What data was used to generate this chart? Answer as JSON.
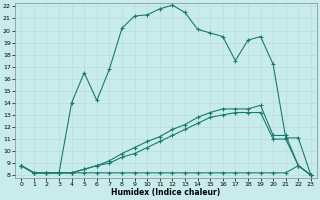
{
  "title": "",
  "xlabel": "Humidex (Indice chaleur)",
  "bg_color": "#c8ecec",
  "grid_color": "#b8d8d8",
  "line_color": "#1a7a6e",
  "xlim": [
    -0.5,
    23.5
  ],
  "ylim": [
    7.8,
    22.3
  ],
  "yticks": [
    8,
    9,
    10,
    11,
    12,
    13,
    14,
    15,
    16,
    17,
    18,
    19,
    20,
    21,
    22
  ],
  "xticks": [
    0,
    1,
    2,
    3,
    4,
    5,
    6,
    7,
    8,
    9,
    10,
    11,
    12,
    13,
    14,
    15,
    16,
    17,
    18,
    19,
    20,
    21,
    22,
    23
  ],
  "line1_x": [
    0,
    1,
    2,
    3,
    4,
    5,
    6,
    7,
    8,
    9,
    10,
    11,
    12,
    13,
    14,
    15,
    16,
    17,
    18,
    19,
    20,
    21,
    22,
    23
  ],
  "line1_y": [
    8.8,
    8.2,
    8.2,
    8.2,
    8.2,
    8.2,
    8.2,
    8.2,
    8.2,
    8.2,
    8.2,
    8.2,
    8.2,
    8.2,
    8.2,
    8.2,
    8.2,
    8.2,
    8.2,
    8.2,
    8.2,
    8.2,
    8.8,
    8.0
  ],
  "line2_x": [
    0,
    1,
    2,
    3,
    4,
    5,
    6,
    7,
    8,
    9,
    10,
    11,
    12,
    13,
    14,
    15,
    16,
    17,
    18,
    19,
    20,
    21,
    22,
    23
  ],
  "line2_y": [
    8.8,
    8.2,
    8.2,
    8.2,
    8.2,
    8.5,
    8.8,
    9.2,
    9.8,
    10.3,
    10.8,
    11.2,
    11.8,
    12.2,
    12.8,
    13.2,
    13.5,
    13.5,
    13.5,
    13.8,
    11.3,
    11.3,
    8.8,
    8.0
  ],
  "line3_x": [
    0,
    1,
    2,
    3,
    4,
    5,
    6,
    7,
    8,
    9,
    10,
    11,
    12,
    13,
    14,
    15,
    16,
    17,
    18,
    19,
    20,
    21,
    22,
    23
  ],
  "line3_y": [
    8.8,
    8.2,
    8.2,
    8.2,
    8.2,
    8.5,
    8.8,
    9.0,
    9.5,
    9.8,
    10.3,
    10.8,
    11.3,
    11.8,
    12.3,
    12.8,
    13.0,
    13.2,
    13.2,
    13.2,
    11.0,
    11.0,
    8.8,
    8.0
  ],
  "line4_x": [
    0,
    1,
    2,
    3,
    4,
    5,
    6,
    7,
    8,
    9,
    10,
    11,
    12,
    13,
    14,
    15,
    16,
    17,
    18,
    19,
    20,
    21,
    22,
    23
  ],
  "line4_y": [
    8.8,
    8.2,
    8.2,
    8.2,
    14.0,
    16.5,
    14.2,
    16.8,
    20.2,
    21.2,
    21.3,
    21.8,
    22.1,
    21.5,
    20.1,
    19.8,
    19.5,
    17.5,
    19.2,
    19.5,
    17.2,
    11.1,
    11.1,
    8.0
  ]
}
